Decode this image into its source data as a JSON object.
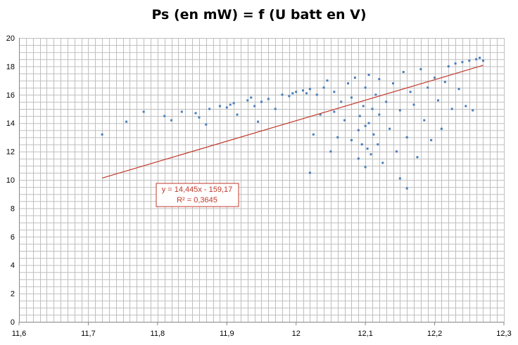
{
  "chart_data": {
    "type": "scatter",
    "title": "Ps (en mW) = f (U batt en V)",
    "xlabel": "",
    "ylabel": "",
    "xlim": [
      11.6,
      12.3
    ],
    "ylim": [
      0,
      20
    ],
    "x_ticks": [
      "11,6",
      "11,7",
      "11,8",
      "11,9",
      "12",
      "12,1",
      "12,2",
      "12,3"
    ],
    "y_ticks": [
      "0",
      "2",
      "4",
      "6",
      "8",
      "10",
      "12",
      "14",
      "16",
      "18",
      "20"
    ],
    "grid": true,
    "colors": {
      "points": "#4a7ebb",
      "trendline": "#c0392b",
      "grid": "#bfbfbf"
    },
    "series": [
      {
        "points": [
          [
            11.72,
            13.2
          ],
          [
            11.755,
            14.1
          ],
          [
            11.78,
            14.8
          ],
          [
            11.81,
            14.5
          ],
          [
            11.82,
            14.2
          ],
          [
            11.835,
            14.8
          ],
          [
            11.855,
            14.7
          ],
          [
            11.86,
            14.4
          ],
          [
            11.87,
            13.9
          ],
          [
            11.875,
            15.0
          ],
          [
            11.89,
            15.2
          ],
          [
            11.9,
            15.1
          ],
          [
            11.905,
            15.3
          ],
          [
            11.91,
            15.4
          ],
          [
            11.915,
            14.6
          ],
          [
            11.93,
            15.6
          ],
          [
            11.935,
            15.8
          ],
          [
            11.94,
            15.2
          ],
          [
            11.945,
            14.1
          ],
          [
            11.95,
            15.5
          ],
          [
            11.96,
            15.7
          ],
          [
            11.97,
            15.0
          ],
          [
            11.98,
            16.0
          ],
          [
            11.99,
            15.9
          ],
          [
            11.995,
            16.1
          ],
          [
            12.0,
            16.2
          ],
          [
            12.01,
            16.3
          ],
          [
            12.015,
            16.1
          ],
          [
            12.02,
            10.5
          ],
          [
            12.02,
            16.4
          ],
          [
            12.025,
            13.2
          ],
          [
            12.03,
            16.0
          ],
          [
            12.035,
            14.6
          ],
          [
            12.04,
            16.5
          ],
          [
            12.045,
            17.0
          ],
          [
            12.05,
            12.0
          ],
          [
            12.055,
            14.8
          ],
          [
            12.055,
            16.2
          ],
          [
            12.06,
            13.0
          ],
          [
            12.065,
            15.5
          ],
          [
            12.07,
            14.2
          ],
          [
            12.075,
            16.8
          ],
          [
            12.08,
            12.8
          ],
          [
            12.08,
            15.8
          ],
          [
            12.085,
            17.2
          ],
          [
            12.09,
            11.5
          ],
          [
            12.09,
            13.5
          ],
          [
            12.092,
            14.5
          ],
          [
            12.095,
            12.5
          ],
          [
            12.097,
            15.2
          ],
          [
            12.1,
            10.9
          ],
          [
            12.1,
            13.8
          ],
          [
            12.1,
            16.5
          ],
          [
            12.103,
            12.2
          ],
          [
            12.105,
            14.0
          ],
          [
            12.105,
            17.4
          ],
          [
            12.108,
            11.8
          ],
          [
            12.11,
            15.0
          ],
          [
            12.112,
            13.2
          ],
          [
            12.115,
            16.0
          ],
          [
            12.118,
            12.5
          ],
          [
            12.12,
            14.6
          ],
          [
            12.12,
            17.1
          ],
          [
            12.125,
            11.2
          ],
          [
            12.13,
            15.5
          ],
          [
            12.135,
            13.6
          ],
          [
            12.14,
            16.8
          ],
          [
            12.145,
            12.0
          ],
          [
            12.15,
            10.1
          ],
          [
            12.15,
            14.9
          ],
          [
            12.155,
            17.6
          ],
          [
            12.16,
            9.4
          ],
          [
            12.16,
            13.0
          ],
          [
            12.165,
            16.2
          ],
          [
            12.17,
            15.3
          ],
          [
            12.175,
            11.6
          ],
          [
            12.18,
            17.8
          ],
          [
            12.185,
            14.2
          ],
          [
            12.19,
            16.5
          ],
          [
            12.195,
            12.8
          ],
          [
            12.2,
            17.2
          ],
          [
            12.205,
            15.6
          ],
          [
            12.21,
            13.6
          ],
          [
            12.215,
            16.9
          ],
          [
            12.22,
            18.0
          ],
          [
            12.225,
            15.0
          ],
          [
            12.23,
            18.2
          ],
          [
            12.235,
            16.4
          ],
          [
            12.24,
            18.3
          ],
          [
            12.245,
            15.2
          ],
          [
            12.25,
            18.4
          ],
          [
            12.255,
            14.9
          ],
          [
            12.26,
            18.5
          ],
          [
            12.265,
            18.6
          ],
          [
            12.27,
            18.4
          ]
        ]
      }
    ],
    "trendline": {
      "slope": 14.445,
      "intercept": -159.17,
      "x_range": [
        11.72,
        12.27
      ],
      "equation": "y = 14,445x - 159,17",
      "r2": "R² = 0,3645"
    }
  }
}
